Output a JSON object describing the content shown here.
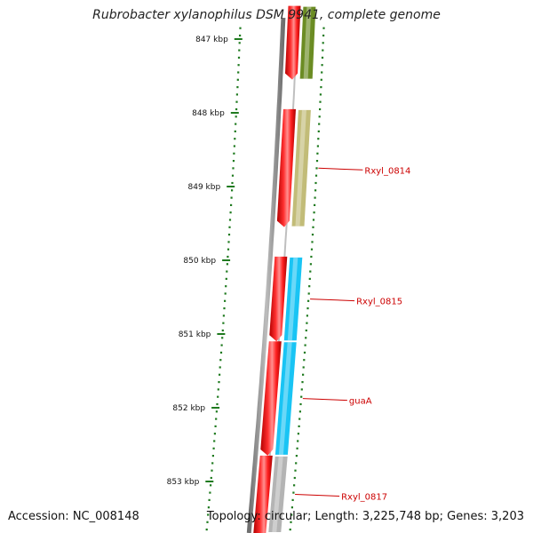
{
  "title": "Rubrobacter xylanophilus DSM 9941, complete genome",
  "footer": {
    "accession": "Accession: NC_008148",
    "summary": "Topology: circular; Length: 3,225,748 bp; Genes: 3,203"
  },
  "colors": {
    "tick": "#1f7a1f",
    "backbone": "#8a8a8a",
    "gene_red": "#ee1111",
    "label": "#cc0000"
  },
  "scale": {
    "ticks": [
      {
        "kbp": 847,
        "label": "847 kbp"
      },
      {
        "kbp": 848,
        "label": "848 kbp"
      },
      {
        "kbp": 849,
        "label": "849 kbp"
      },
      {
        "kbp": 850,
        "label": "850 kbp"
      },
      {
        "kbp": 851,
        "label": "851 kbp"
      },
      {
        "kbp": 852,
        "label": "852 kbp"
      },
      {
        "kbp": 853,
        "label": "853 kbp"
      }
    ]
  },
  "genes": [
    {
      "start_kbp": 846.55,
      "end_kbp": 847.55,
      "strand": "-",
      "color": "#ee1111"
    },
    {
      "start_kbp": 847.95,
      "end_kbp": 849.55,
      "strand": "-",
      "color": "#ee1111"
    },
    {
      "start_kbp": 849.95,
      "end_kbp": 851.1,
      "strand": "-",
      "color": "#ee1111"
    },
    {
      "start_kbp": 851.1,
      "end_kbp": 852.65,
      "strand": "-",
      "color": "#ee1111"
    },
    {
      "start_kbp": 852.65,
      "end_kbp": 853.7,
      "strand": "-",
      "color": "#ee1111"
    }
  ],
  "features": [
    {
      "start_kbp": 846.55,
      "end_kbp": 847.55,
      "color": "#6b8c23"
    },
    {
      "start_kbp": 847.95,
      "end_kbp": 849.55,
      "color": "#c2bc78",
      "label": "Rxyl_0814"
    },
    {
      "start_kbp": 849.95,
      "end_kbp": 851.1,
      "color": "#19c4f4",
      "label": "Rxyl_0815"
    },
    {
      "start_kbp": 851.1,
      "end_kbp": 852.65,
      "color": "#19c4f4",
      "label": "guaA"
    },
    {
      "start_kbp": 852.65,
      "end_kbp": 853.7,
      "color": "#b4b4b4",
      "label": "Rxyl_0817"
    }
  ]
}
